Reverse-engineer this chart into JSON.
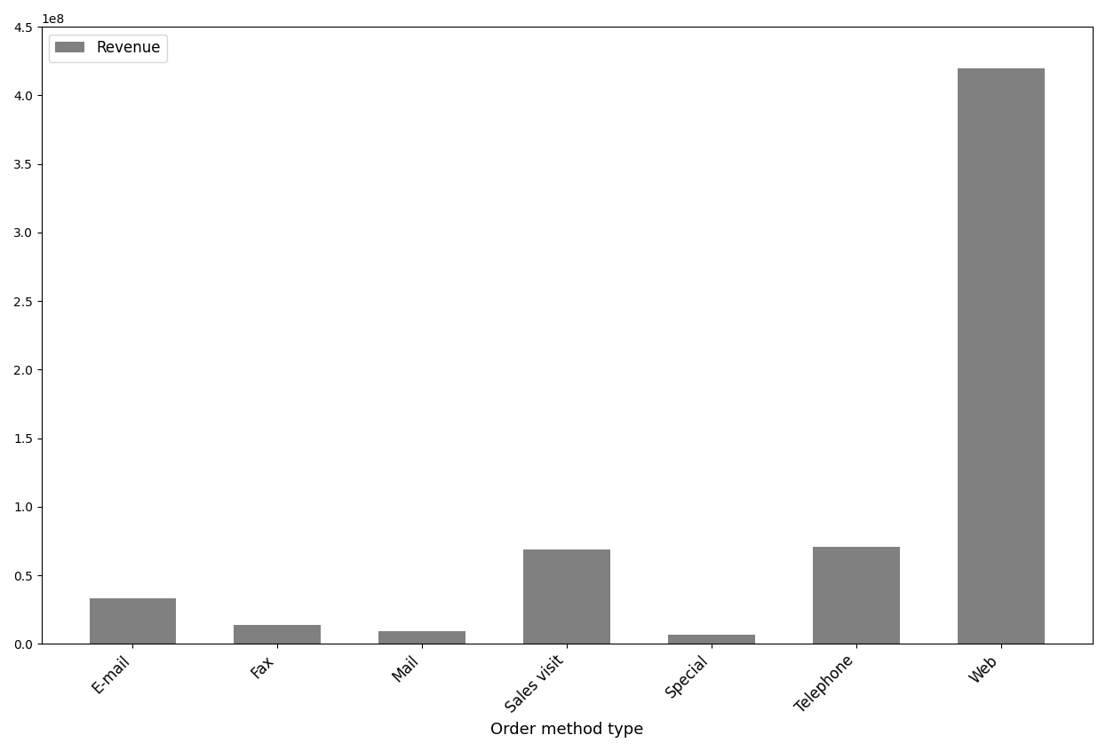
{
  "categories": [
    "E-mail",
    "Fax",
    "Mail",
    "Sales visit",
    "Special",
    "Telephone",
    "Web"
  ],
  "values": [
    33000000,
    14000000,
    9000000,
    69000000,
    7000000,
    71000000,
    420000000
  ],
  "bar_color": "#808080",
  "xlabel": "Order method type",
  "ylabel": "",
  "legend_label": "Revenue",
  "ylim": [
    0,
    450000000
  ],
  "background_color": "#ffffff",
  "figsize": [
    12.45,
    8.46
  ],
  "dpi": 100
}
